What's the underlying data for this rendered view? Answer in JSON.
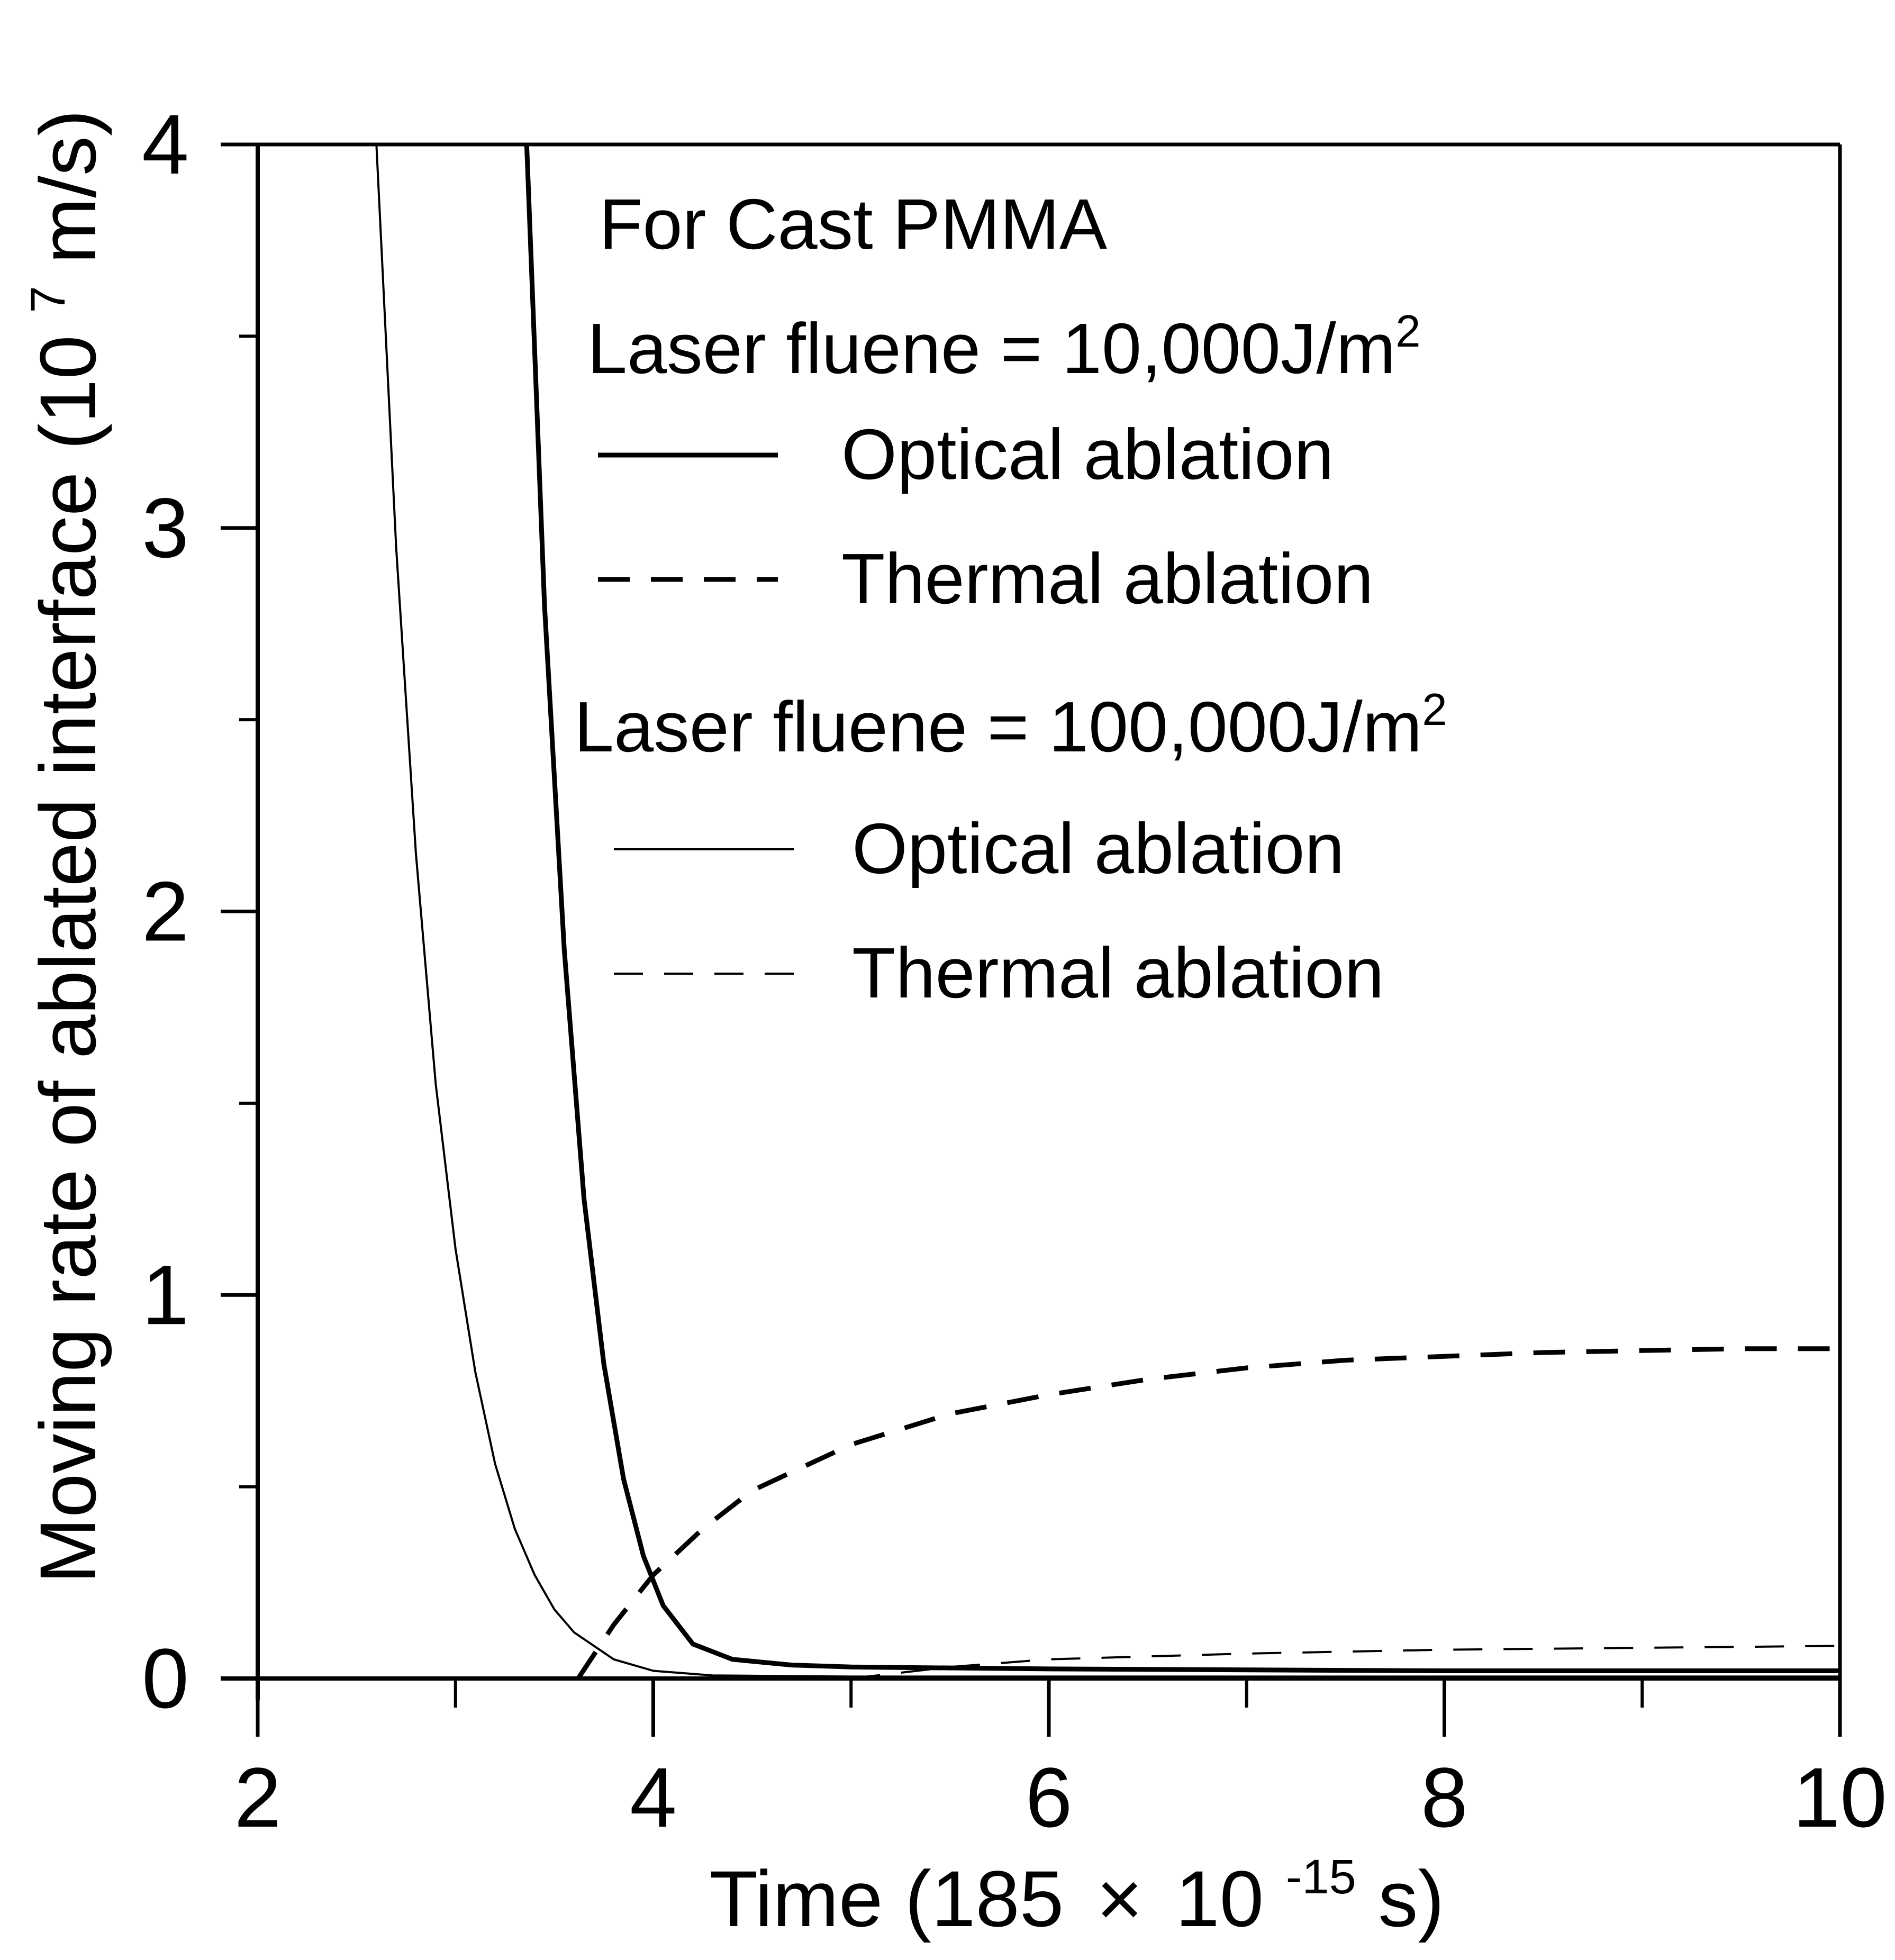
{
  "colors": {
    "line": "#000000",
    "background": "#ffffff"
  },
  "chart_data": {
    "type": "line",
    "title": "For Cast PMMA",
    "xlabel": {
      "text": "Time (185",
      "times": "×",
      "base": "10",
      "exp": "-15",
      "unit": "s)"
    },
    "ylabel": {
      "text": "Moving rate of ablated interface (10",
      "exp": "7",
      "unit": "m/s)"
    },
    "xlim": [
      2,
      10
    ],
    "ylim": [
      0,
      4
    ],
    "x_ticks": [
      "2",
      "4",
      "6",
      "8",
      "10"
    ],
    "y_ticks": [
      "0",
      "1",
      "2",
      "3",
      "4"
    ],
    "x_minor": [
      3,
      5,
      7,
      9
    ],
    "y_minor": [
      0.5,
      1.5,
      2.5,
      3.5
    ],
    "groups": [
      {
        "label": {
          "text": "Laser fluene = 10,000J/m",
          "sup": "2"
        },
        "series_indices": [
          0,
          1
        ]
      },
      {
        "label": {
          "text": "Laser fluene = 100,000J/m",
          "sup": "2"
        },
        "series_indices": [
          2,
          3
        ]
      }
    ],
    "series": [
      {
        "name": "Optical ablation",
        "fluence": "10,000 J/m2",
        "style": "solid",
        "weight": "thick",
        "x": [
          3.36,
          3.45,
          3.55,
          3.65,
          3.75,
          3.85,
          3.95,
          4.05,
          4.2,
          4.4,
          4.7,
          5.0,
          6.0,
          8.0,
          10.0
        ],
        "y": [
          4.0,
          2.8,
          1.9,
          1.25,
          0.82,
          0.52,
          0.32,
          0.19,
          0.09,
          0.05,
          0.035,
          0.03,
          0.025,
          0.02,
          0.02
        ]
      },
      {
        "name": "Thermal ablation",
        "fluence": "10,000 J/m2",
        "style": "dashed",
        "weight": "thick",
        "x": [
          3.62,
          3.8,
          4.0,
          4.25,
          4.5,
          5.0,
          5.5,
          6.0,
          6.5,
          7.0,
          7.5,
          8.0,
          8.5,
          9.0,
          9.5,
          10.0
        ],
        "y": [
          0.0,
          0.14,
          0.27,
          0.39,
          0.49,
          0.61,
          0.69,
          0.74,
          0.78,
          0.81,
          0.83,
          0.84,
          0.85,
          0.855,
          0.86,
          0.86
        ]
      },
      {
        "name": "Optical ablation",
        "fluence": "100,000 J/m2",
        "style": "solid",
        "weight": "thin",
        "x": [
          2.6,
          2.7,
          2.8,
          2.9,
          3.0,
          3.1,
          3.2,
          3.3,
          3.4,
          3.5,
          3.6,
          3.8,
          4.0,
          4.3,
          5.0,
          6.0,
          10.0
        ],
        "y": [
          4.0,
          2.95,
          2.15,
          1.55,
          1.12,
          0.8,
          0.56,
          0.39,
          0.27,
          0.18,
          0.12,
          0.05,
          0.02,
          0.008,
          0.005,
          0.005,
          0.005
        ]
      },
      {
        "name": "Thermal ablation",
        "fluence": "100,000 J/m2",
        "style": "dashed",
        "weight": "thin",
        "x": [
          5.0,
          5.5,
          6.0,
          7.0,
          8.0,
          9.0,
          10.0
        ],
        "y": [
          0.0,
          0.03,
          0.05,
          0.065,
          0.075,
          0.08,
          0.085
        ]
      }
    ]
  }
}
